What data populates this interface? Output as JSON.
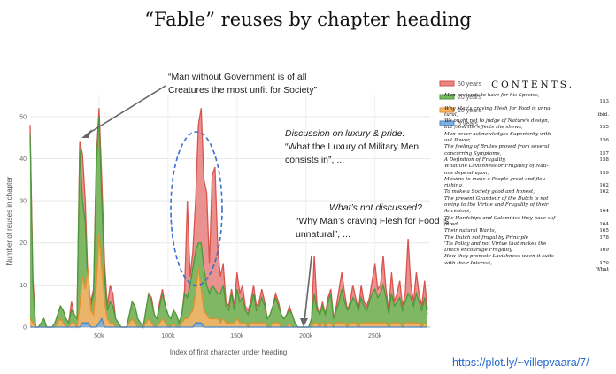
{
  "slide": {
    "title": "“Fable” reuses by chapter heading",
    "link": "https://plot.ly/~villepvaara/7/"
  },
  "chart_data": {
    "type": "area",
    "title": "",
    "xlabel": "Index of first character under heading",
    "ylabel": "Number of reuses in chapter",
    "xlim": [
      0,
      290000
    ],
    "ylim": [
      0,
      55
    ],
    "xticks": [
      {
        "v": 50000,
        "label": "50k"
      },
      {
        "v": 100000,
        "label": "100k"
      },
      {
        "v": 150000,
        "label": "150k"
      },
      {
        "v": 200000,
        "label": "200k"
      },
      {
        "v": 250000,
        "label": "250k"
      }
    ],
    "yticks": [
      0,
      10,
      20,
      30,
      40,
      50
    ],
    "legend_position": "top-right",
    "series": [
      {
        "name": "50 years",
        "color": "#d9534f",
        "fill": "#e88683",
        "x": [
          0,
          2000,
          4000,
          6000,
          8000,
          10000,
          12000,
          14000,
          16000,
          18000,
          20000,
          22000,
          24000,
          26000,
          28000,
          30000,
          32000,
          34000,
          36000,
          38000,
          40000,
          42000,
          44000,
          46000,
          48000,
          50000,
          52000,
          54000,
          56000,
          58000,
          60000,
          62000,
          64000,
          66000,
          68000,
          70000,
          72000,
          74000,
          76000,
          78000,
          80000,
          82000,
          84000,
          86000,
          88000,
          90000,
          92000,
          94000,
          96000,
          98000,
          100000,
          102000,
          104000,
          106000,
          108000,
          110000,
          112000,
          114000,
          116000,
          118000,
          120000,
          122000,
          124000,
          126000,
          128000,
          130000,
          132000,
          134000,
          136000,
          138000,
          140000,
          142000,
          144000,
          146000,
          148000,
          150000,
          152000,
          154000,
          156000,
          158000,
          160000,
          162000,
          164000,
          166000,
          168000,
          170000,
          172000,
          174000,
          176000,
          178000,
          180000,
          182000,
          184000,
          186000,
          188000,
          190000,
          192000,
          194000,
          196000,
          198000,
          200000,
          202000,
          204000,
          206000,
          208000,
          210000,
          212000,
          214000,
          216000,
          218000,
          220000,
          222000,
          224000,
          226000,
          228000,
          230000,
          232000,
          234000,
          236000,
          238000,
          240000,
          242000,
          244000,
          246000,
          248000,
          250000,
          252000,
          254000,
          256000,
          258000,
          260000,
          262000,
          264000,
          266000,
          268000,
          270000,
          272000,
          274000,
          276000,
          278000,
          280000,
          282000,
          284000,
          286000,
          288000
        ],
        "y": [
          48,
          12,
          0,
          0,
          1,
          2,
          0,
          0,
          0,
          1,
          3,
          5,
          4,
          2,
          1,
          6,
          3,
          2,
          44,
          41,
          30,
          10,
          6,
          9,
          40,
          52,
          35,
          15,
          5,
          10,
          8,
          2,
          1,
          0,
          0,
          0,
          3,
          6,
          5,
          2,
          1,
          0,
          4,
          8,
          7,
          3,
          2,
          6,
          9,
          5,
          3,
          2,
          4,
          3,
          1,
          3,
          9,
          30,
          12,
          18,
          30,
          48,
          52,
          35,
          32,
          15,
          36,
          38,
          19,
          12,
          15,
          6,
          5,
          9,
          5,
          13,
          8,
          10,
          5,
          4,
          6,
          10,
          5,
          6,
          9,
          6,
          2,
          3,
          5,
          8,
          6,
          3,
          2,
          3,
          5,
          3,
          1,
          0,
          0,
          0,
          0,
          0,
          2,
          17,
          5,
          3,
          6,
          3,
          7,
          9,
          2,
          5,
          9,
          13,
          8,
          4,
          6,
          10,
          7,
          4,
          10,
          6,
          5,
          7,
          11,
          15,
          9,
          10,
          17,
          9,
          4,
          13,
          6,
          8,
          11,
          5,
          8,
          21,
          10,
          6,
          13,
          8,
          5,
          11,
          4
        ]
      },
      {
        "name": "20 years",
        "color": "#4a9a3a",
        "fill": "#74bb5f",
        "x": [
          0,
          2000,
          4000,
          6000,
          8000,
          10000,
          12000,
          14000,
          16000,
          18000,
          20000,
          22000,
          24000,
          26000,
          28000,
          30000,
          32000,
          34000,
          36000,
          38000,
          40000,
          42000,
          44000,
          46000,
          48000,
          50000,
          52000,
          54000,
          56000,
          58000,
          60000,
          62000,
          64000,
          66000,
          68000,
          70000,
          72000,
          74000,
          76000,
          78000,
          80000,
          82000,
          84000,
          86000,
          88000,
          90000,
          92000,
          94000,
          96000,
          98000,
          100000,
          102000,
          104000,
          106000,
          108000,
          110000,
          112000,
          114000,
          116000,
          118000,
          120000,
          122000,
          124000,
          126000,
          128000,
          130000,
          132000,
          134000,
          136000,
          138000,
          140000,
          142000,
          144000,
          146000,
          148000,
          150000,
          152000,
          154000,
          156000,
          158000,
          160000,
          162000,
          164000,
          166000,
          168000,
          170000,
          172000,
          174000,
          176000,
          178000,
          180000,
          182000,
          184000,
          186000,
          188000,
          190000,
          192000,
          194000,
          196000,
          198000,
          200000,
          202000,
          204000,
          206000,
          208000,
          210000,
          212000,
          214000,
          216000,
          218000,
          220000,
          222000,
          224000,
          226000,
          228000,
          230000,
          232000,
          234000,
          236000,
          238000,
          240000,
          242000,
          244000,
          246000,
          248000,
          250000,
          252000,
          254000,
          256000,
          258000,
          260000,
          262000,
          264000,
          266000,
          268000,
          270000,
          272000,
          274000,
          276000,
          278000,
          280000,
          282000,
          284000,
          286000,
          288000
        ],
        "y": [
          46,
          10,
          0,
          0,
          1,
          2,
          0,
          0,
          0,
          1,
          3,
          5,
          4,
          2,
          1,
          4,
          3,
          2,
          42,
          30,
          25,
          8,
          5,
          8,
          38,
          50,
          30,
          12,
          4,
          6,
          5,
          2,
          1,
          0,
          0,
          0,
          3,
          6,
          5,
          2,
          1,
          0,
          4,
          8,
          6,
          3,
          2,
          5,
          8,
          5,
          3,
          2,
          4,
          3,
          1,
          3,
          8,
          7,
          10,
          14,
          18,
          20,
          20,
          14,
          10,
          8,
          10,
          9,
          8,
          8,
          10,
          5,
          4,
          8,
          4,
          9,
          6,
          7,
          4,
          3,
          5,
          8,
          4,
          5,
          7,
          5,
          2,
          3,
          5,
          7,
          5,
          3,
          2,
          3,
          4,
          3,
          1,
          0,
          0,
          0,
          0,
          0,
          2,
          8,
          4,
          3,
          5,
          3,
          6,
          8,
          2,
          4,
          6,
          9,
          6,
          4,
          5,
          7,
          6,
          4,
          7,
          5,
          4,
          6,
          8,
          9,
          7,
          8,
          10,
          7,
          3,
          8,
          5,
          6,
          7,
          4,
          6,
          8,
          7,
          5,
          8,
          6,
          4,
          7,
          3
        ]
      },
      {
        "name": "10 years",
        "color": "#e0922f",
        "fill": "#f5b46a",
        "x": [
          0,
          2000,
          4000,
          6000,
          8000,
          10000,
          12000,
          14000,
          16000,
          18000,
          20000,
          22000,
          24000,
          26000,
          28000,
          30000,
          32000,
          34000,
          36000,
          38000,
          40000,
          42000,
          44000,
          46000,
          48000,
          50000,
          52000,
          54000,
          56000,
          58000,
          60000,
          62000,
          64000,
          66000,
          68000,
          70000,
          72000,
          74000,
          76000,
          78000,
          80000,
          82000,
          84000,
          86000,
          88000,
          90000,
          92000,
          94000,
          96000,
          98000,
          100000,
          102000,
          104000,
          106000,
          108000,
          110000,
          112000,
          114000,
          116000,
          118000,
          120000,
          122000,
          124000,
          126000,
          128000,
          130000,
          132000,
          134000,
          136000,
          138000,
          140000,
          142000,
          144000,
          146000,
          148000,
          150000,
          152000,
          154000,
          156000,
          158000,
          160000,
          162000,
          164000,
          166000,
          168000,
          170000,
          172000,
          174000,
          176000,
          178000,
          180000,
          182000,
          184000,
          186000,
          188000,
          190000,
          192000,
          194000,
          196000,
          198000,
          200000,
          202000,
          204000,
          206000,
          208000,
          210000,
          212000,
          214000,
          216000,
          218000,
          220000,
          222000,
          224000,
          226000,
          228000,
          230000,
          232000,
          234000,
          236000,
          238000,
          240000,
          242000,
          244000,
          246000,
          248000,
          250000,
          252000,
          254000,
          256000,
          258000,
          260000,
          262000,
          264000,
          266000,
          268000,
          270000,
          272000,
          274000,
          276000,
          278000,
          280000,
          282000,
          284000,
          286000,
          288000
        ],
        "y": [
          2,
          1,
          0,
          0,
          0,
          0,
          0,
          0,
          0,
          0,
          1,
          2,
          1,
          0,
          0,
          1,
          1,
          0,
          5,
          12,
          9,
          14,
          4,
          3,
          10,
          22,
          14,
          6,
          2,
          1,
          1,
          0,
          0,
          0,
          0,
          0,
          1,
          2,
          1,
          0,
          0,
          0,
          1,
          2,
          1,
          0,
          0,
          1,
          2,
          1,
          0,
          0,
          1,
          0,
          0,
          1,
          2,
          2,
          3,
          4,
          8,
          14,
          9,
          4,
          3,
          2,
          2,
          2,
          2,
          1,
          2,
          1,
          1,
          1,
          1,
          2,
          1,
          1,
          1,
          0,
          1,
          1,
          1,
          1,
          1,
          1,
          0,
          0,
          1,
          1,
          1,
          0,
          0,
          0,
          1,
          0,
          0,
          0,
          0,
          0,
          0,
          0,
          0,
          1,
          1,
          0,
          1,
          0,
          1,
          1,
          0,
          1,
          1,
          1,
          1,
          0,
          1,
          1,
          1,
          0,
          1,
          1,
          1,
          1,
          1,
          1,
          1,
          1,
          1,
          1,
          0,
          1,
          1,
          1,
          1,
          0,
          1,
          1,
          1,
          1,
          1,
          1,
          0,
          1,
          0
        ]
      },
      {
        "name": "5 years",
        "color": "#4a86c5",
        "fill": "#7fb0df",
        "x": [
          0,
          36000,
          38000,
          40000,
          42000,
          44000,
          48000,
          50000,
          52000,
          54000,
          118000,
          120000,
          122000,
          124000,
          126000,
          288000
        ],
        "y": [
          0,
          0,
          1,
          1,
          1,
          0,
          0,
          1,
          2,
          0,
          0,
          1,
          1,
          1,
          0,
          0
        ]
      }
    ]
  },
  "annotations": {
    "a1_l1": "“Man without Government is of all",
    "a1_l2": "Creatures the most unfit for Society”",
    "a2_l1": "Discussion on luxury & pride:",
    "a2_l2": "“What the Luxury of Military Men",
    "a2_l3": "consists in”, ...",
    "a3_l1": "What’s not discussed?",
    "a3_l2": "“Why Man’s craving Flesh for Food is",
    "a3_l3": "unnatural”, ..."
  },
  "contents": {
    "heading": "CONTENTS.",
    "rows": [
      {
        "text": "Man pretends to have for his Species,",
        "page": ""
      },
      {
        "text": "",
        "page": "153"
      },
      {
        "text": "Why Man's craving Flesh for Food is unna-",
        "page": ""
      },
      {
        "text": "tural,",
        "page": "ibid."
      },
      {
        "text": "We ought not to judge of Nature's design,",
        "page": ""
      },
      {
        "text": "but from the effects she shews,",
        "page": "155"
      },
      {
        "text": "Man never acknowledges Superiority with-",
        "page": ""
      },
      {
        "text": "out Power,",
        "page": "156"
      },
      {
        "text": "The feeling of Brutes proved from several",
        "page": ""
      },
      {
        "text": "concurring Symptoms,",
        "page": "157"
      },
      {
        "text": "A Definition of Frugality,",
        "page": "158"
      },
      {
        "text": "What the Lavishness or Frugality of Nati-",
        "page": ""
      },
      {
        "text": "ons depend upon,",
        "page": "159"
      },
      {
        "text": "Maxims to make a People great and flou-",
        "page": ""
      },
      {
        "text": "rishing,",
        "page": "162"
      },
      {
        "text": "To make a Society good and honest,",
        "page": "162"
      },
      {
        "text": "The present Grandeur of the Dutch is not",
        "page": ""
      },
      {
        "text": "owing to the Virtue and Frugality of their",
        "page": ""
      },
      {
        "text": "Ancestors,",
        "page": "164"
      },
      {
        "text": "The Hardships and Calamities they have suf-",
        "page": ""
      },
      {
        "text": "fered",
        "page": "164"
      },
      {
        "text": "Their natural Wants,",
        "page": "165"
      },
      {
        "text": "The Dutch not frugal by Principle",
        "page": "178"
      },
      {
        "text": "'Tis Policy and not Virtue that makes the",
        "page": ""
      },
      {
        "text": "Dutch encourage Frugality,",
        "page": "169"
      },
      {
        "text": "How they promote Lavishness when it suits",
        "page": ""
      },
      {
        "text": "with their Interest,",
        "page": "170"
      },
      {
        "text": "",
        "page": "What"
      }
    ]
  }
}
